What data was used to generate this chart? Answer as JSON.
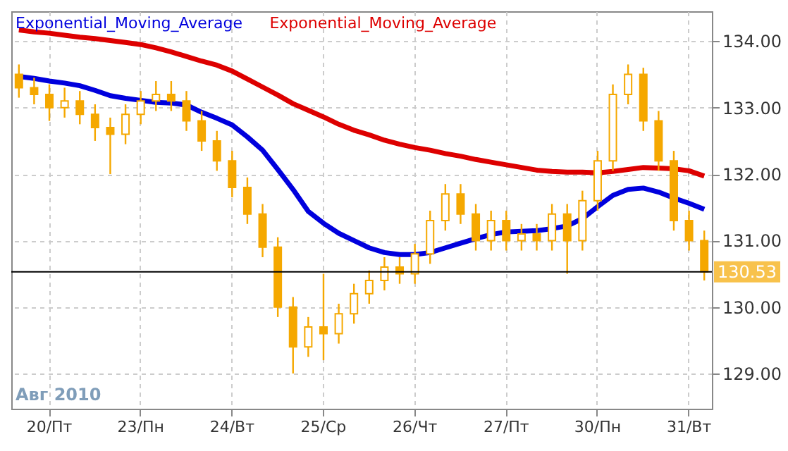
{
  "chart_data": {
    "type": "candlestick",
    "categories": [
      null,
      null,
      "20/Пт",
      null,
      null,
      null,
      null,
      null,
      "23/Пн",
      null,
      null,
      null,
      null,
      null,
      "24/Вт",
      null,
      null,
      null,
      null,
      null,
      "25/Ср",
      null,
      null,
      null,
      null,
      null,
      "26/Чт",
      null,
      null,
      null,
      null,
      null,
      "27/Пт",
      null,
      null,
      null,
      null,
      null,
      "30/Пн",
      null,
      null,
      null,
      null,
      null,
      "31/Вт",
      null
    ],
    "ohlc": [
      [
        133.5,
        133.65,
        133.15,
        133.3
      ],
      [
        133.3,
        133.45,
        133.05,
        133.2
      ],
      [
        133.2,
        133.35,
        132.8,
        133.0
      ],
      [
        133.0,
        133.3,
        132.85,
        133.1
      ],
      [
        133.1,
        133.25,
        132.75,
        132.9
      ],
      [
        132.9,
        133.05,
        132.5,
        132.7
      ],
      [
        132.7,
        132.85,
        132.0,
        132.6
      ],
      [
        132.6,
        133.05,
        132.45,
        132.9
      ],
      [
        132.9,
        133.25,
        132.75,
        133.1
      ],
      [
        133.1,
        133.4,
        132.95,
        133.2
      ],
      [
        133.2,
        133.4,
        132.95,
        133.1
      ],
      [
        133.1,
        133.25,
        132.65,
        132.8
      ],
      [
        132.8,
        132.95,
        132.35,
        132.5
      ],
      [
        132.5,
        132.65,
        132.05,
        132.2
      ],
      [
        132.2,
        132.35,
        131.65,
        131.8
      ],
      [
        131.8,
        131.95,
        131.25,
        131.4
      ],
      [
        131.4,
        131.55,
        130.75,
        130.9
      ],
      [
        130.9,
        131.05,
        129.85,
        130.0
      ],
      [
        130.0,
        130.15,
        129.0,
        129.4
      ],
      [
        129.4,
        129.85,
        129.25,
        129.7
      ],
      [
        129.7,
        130.5,
        129.2,
        129.6
      ],
      [
        129.6,
        130.05,
        129.45,
        129.9
      ],
      [
        129.9,
        130.35,
        129.75,
        130.2
      ],
      [
        130.2,
        130.55,
        130.05,
        130.4
      ],
      [
        130.4,
        130.75,
        130.25,
        130.6
      ],
      [
        130.6,
        130.75,
        130.35,
        130.5
      ],
      [
        130.5,
        130.95,
        130.35,
        130.8
      ],
      [
        130.8,
        131.45,
        130.65,
        131.3
      ],
      [
        131.3,
        131.85,
        131.15,
        131.7
      ],
      [
        131.7,
        131.85,
        131.25,
        131.4
      ],
      [
        131.4,
        131.55,
        130.85,
        131.0
      ],
      [
        131.0,
        131.45,
        130.85,
        131.3
      ],
      [
        131.3,
        131.45,
        130.85,
        131.0
      ],
      [
        131.0,
        131.25,
        130.85,
        131.1
      ],
      [
        131.1,
        131.25,
        130.85,
        131.0
      ],
      [
        131.0,
        131.55,
        130.85,
        131.4
      ],
      [
        131.4,
        131.55,
        130.5,
        131.0
      ],
      [
        131.0,
        131.75,
        130.85,
        131.6
      ],
      [
        131.6,
        132.35,
        131.45,
        132.2
      ],
      [
        132.2,
        133.35,
        132.05,
        133.2
      ],
      [
        133.2,
        133.65,
        133.05,
        133.5
      ],
      [
        133.5,
        133.6,
        132.65,
        132.8
      ],
      [
        132.8,
        132.95,
        132.05,
        132.2
      ],
      [
        132.2,
        132.35,
        131.15,
        131.3
      ],
      [
        131.3,
        131.45,
        130.85,
        131.0
      ],
      [
        131.0,
        131.15,
        130.4,
        130.53
      ]
    ],
    "color": "#f5a800",
    "series": [
      {
        "name": "Exponential_Moving_Average",
        "type": "line",
        "color": "#0000dd",
        "values": [
          133.47,
          133.44,
          133.4,
          133.37,
          133.33,
          133.26,
          133.18,
          133.14,
          133.11,
          133.08,
          133.07,
          133.04,
          132.93,
          132.84,
          132.74,
          132.56,
          132.36,
          132.07,
          131.77,
          131.44,
          131.26,
          131.11,
          131.0,
          130.89,
          130.82,
          130.79,
          130.79,
          130.82,
          130.89,
          130.96,
          131.03,
          131.09,
          131.13,
          131.14,
          131.15,
          131.18,
          131.22,
          131.33,
          131.51,
          131.68,
          131.77,
          131.79,
          131.73,
          131.64,
          131.56,
          131.47
        ]
      },
      {
        "name": "Exponential_Moving_Average",
        "type": "line",
        "color": "#dd0000",
        "values": [
          134.17,
          134.14,
          134.12,
          134.09,
          134.06,
          134.04,
          134.01,
          133.98,
          133.95,
          133.9,
          133.84,
          133.77,
          133.7,
          133.64,
          133.55,
          133.43,
          133.31,
          133.19,
          133.06,
          132.96,
          132.86,
          132.75,
          132.66,
          132.59,
          132.51,
          132.45,
          132.4,
          132.36,
          132.31,
          132.27,
          132.22,
          132.18,
          132.14,
          132.1,
          132.06,
          132.04,
          132.03,
          132.03,
          132.02,
          132.04,
          132.07,
          132.1,
          132.09,
          132.08,
          132.05,
          131.97
        ]
      }
    ],
    "ylim": [
      128.47,
      134.45
    ],
    "yticks": [
      {
        "value": 129,
        "label": "129.00"
      },
      {
        "value": 130,
        "label": "130.00"
      },
      {
        "value": 131,
        "label": "131.00"
      },
      {
        "value": 132,
        "label": "132.00"
      },
      {
        "value": 133,
        "label": "133.00"
      },
      {
        "value": 134,
        "label": "134.00"
      }
    ],
    "ref_lines": [
      {
        "axis": "y",
        "value": 130.53,
        "label": "130.53",
        "color": "#000000"
      }
    ],
    "annotations": [
      "Авг 2010"
    ],
    "grid": true,
    "legend": "top left",
    "line_style": "solid",
    "marker": "none"
  }
}
